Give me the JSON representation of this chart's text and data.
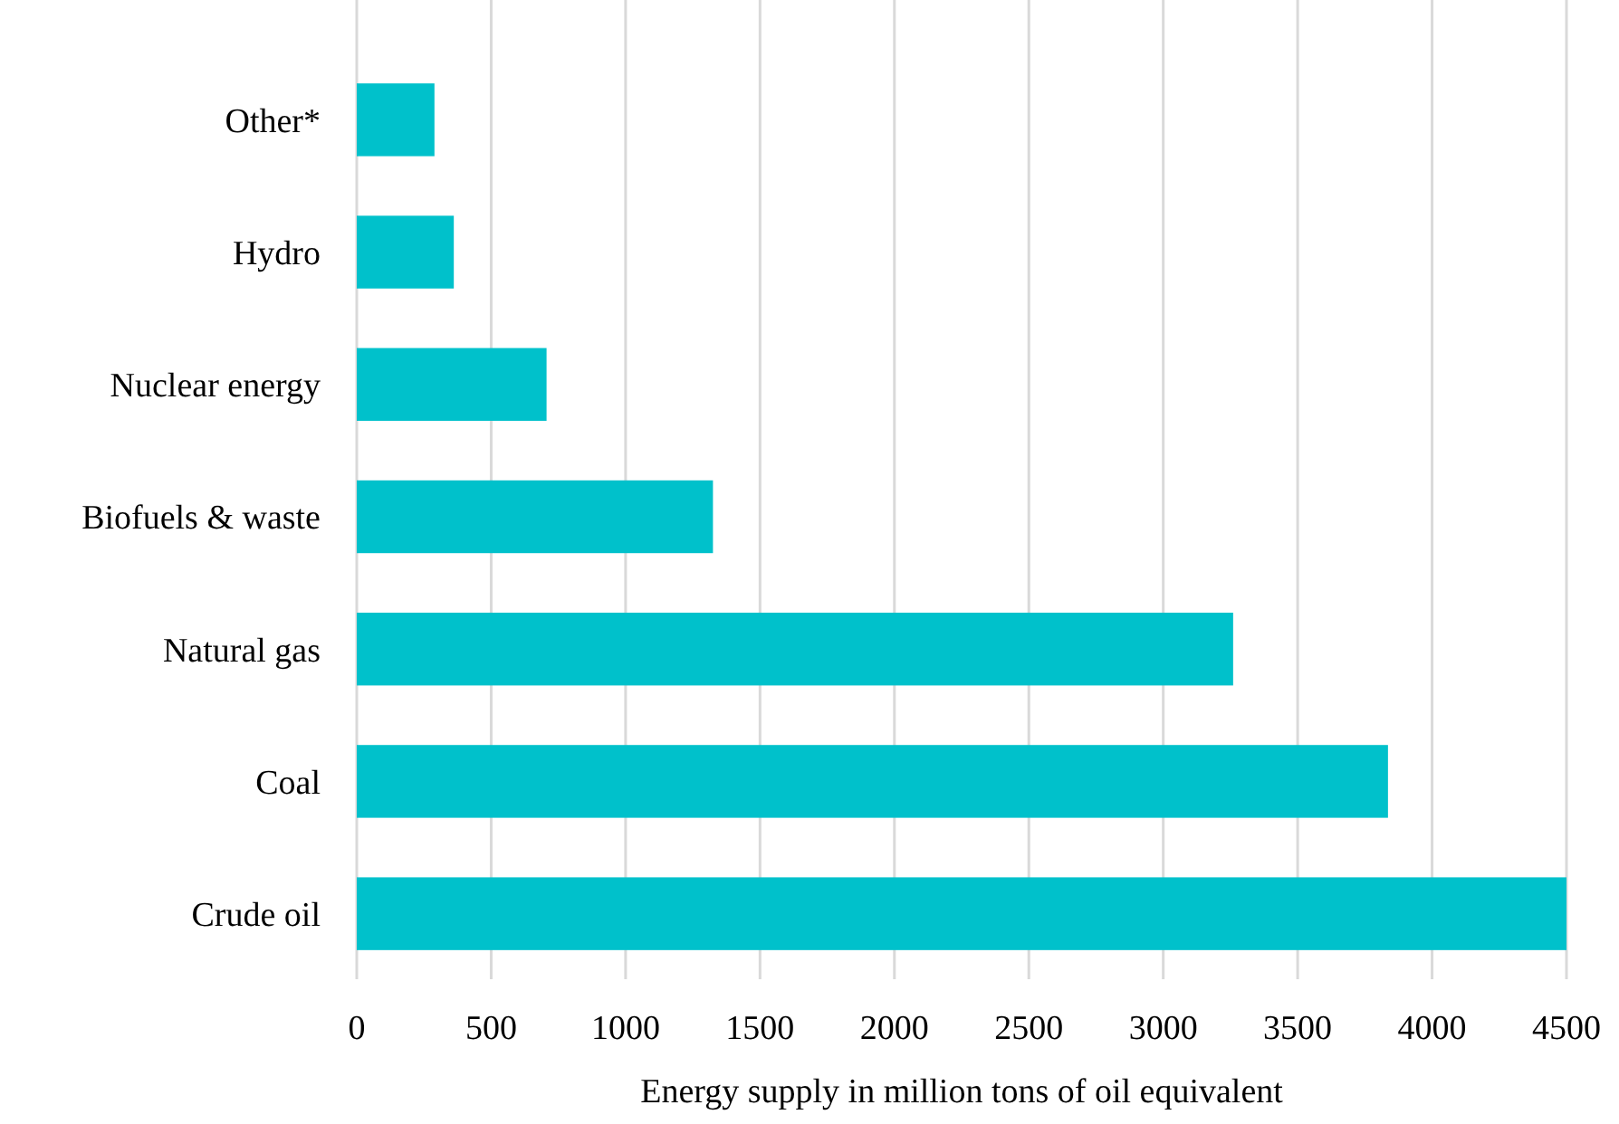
{
  "chart_data": {
    "type": "bar",
    "orientation": "horizontal",
    "xlabel": "Energy supply in million tons of oil equivalent",
    "categories": [
      "Other*",
      "Hydro",
      "Nuclear energy",
      "Biofuels & waste",
      "Natural gas",
      "Coal",
      "Crude oil"
    ],
    "values": [
      289,
      361,
      706,
      1325,
      3260,
      3836,
      4500
    ],
    "color": "#00c1cb",
    "xlim": [
      0,
      4500
    ],
    "xticks": [
      0,
      500,
      1000,
      1500,
      2000,
      2500,
      3000,
      3500,
      4000,
      4500
    ],
    "grid": "x"
  }
}
